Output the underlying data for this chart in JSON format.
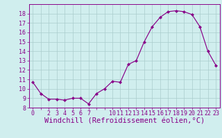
{
  "x": [
    0,
    1,
    2,
    3,
    4,
    5,
    6,
    7,
    8,
    9,
    10,
    11,
    12,
    13,
    14,
    15,
    16,
    17,
    18,
    19,
    20,
    21,
    22,
    23
  ],
  "y": [
    10.7,
    9.5,
    8.9,
    8.9,
    8.8,
    9.0,
    9.0,
    8.4,
    9.5,
    10.0,
    10.8,
    10.7,
    12.6,
    13.0,
    15.0,
    16.6,
    17.6,
    18.2,
    18.3,
    18.2,
    17.9,
    16.6,
    14.0,
    12.5
  ],
  "line_color": "#880088",
  "marker": "D",
  "marker_size": 2.2,
  "bg_color": "#d0eeee",
  "grid_color": "#aacccc",
  "xlabel": "Windchill (Refroidissement éolien,°C)",
  "ylim": [
    8,
    19
  ],
  "xlim": [
    -0.5,
    23.5
  ],
  "yticks": [
    8,
    9,
    10,
    11,
    12,
    13,
    14,
    15,
    16,
    17,
    18
  ],
  "tick_fontsize": 6.0,
  "xlabel_fontsize": 7.5,
  "label_color": "#880088",
  "spine_color": "#880088"
}
